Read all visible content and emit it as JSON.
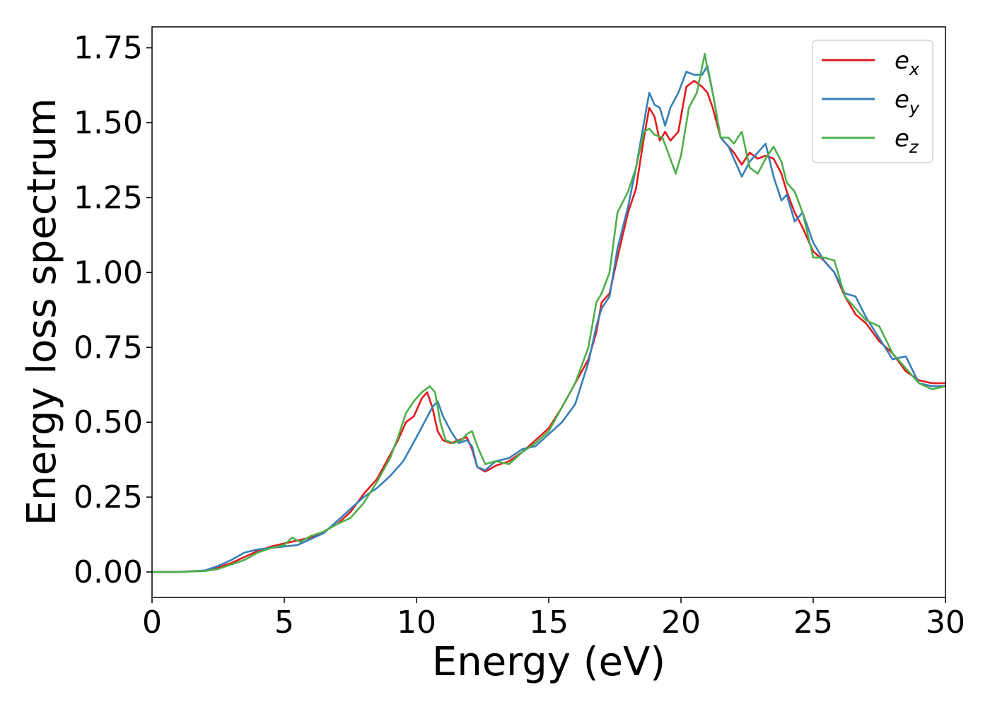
{
  "chart_data": {
    "type": "line",
    "xlabel": "Energy (eV)",
    "ylabel": "Energy loss spectrum",
    "xlim": [
      0,
      30
    ],
    "ylim": [
      -0.085,
      1.82
    ],
    "xticks": [
      0,
      5,
      10,
      15,
      20,
      25,
      30
    ],
    "xtick_labels": [
      "0",
      "5",
      "10",
      "15",
      "20",
      "25",
      "30"
    ],
    "yticks": [
      0,
      0.25,
      0.5,
      0.75,
      1.0,
      1.25,
      1.5,
      1.75
    ],
    "ytick_labels": [
      "0.00",
      "0.25",
      "0.50",
      "0.75",
      "1.00",
      "1.25",
      "1.50",
      "1.75"
    ],
    "grid": false,
    "legend_position": "top-right",
    "series": [
      {
        "name": "e_x",
        "legend_base": "e",
        "legend_sub": "x",
        "color": "#e41a1c",
        "x": [
          0,
          1,
          2,
          2.5,
          3,
          3.5,
          4,
          4.5,
          5,
          5.5,
          6,
          6.5,
          7,
          7.5,
          8,
          8.5,
          9,
          9.3,
          9.6,
          9.9,
          10.2,
          10.4,
          10.6,
          10.8,
          11,
          11.3,
          11.6,
          11.9,
          12.1,
          12.3,
          12.6,
          13,
          13.5,
          14,
          14.5,
          15,
          15.5,
          16,
          16.5,
          16.8,
          17,
          17.3,
          17.6,
          18,
          18.3,
          18.6,
          18.8,
          19,
          19.2,
          19.4,
          19.6,
          19.9,
          20.2,
          20.5,
          20.8,
          21,
          21.2,
          21.5,
          21.8,
          22,
          22.3,
          22.6,
          22.9,
          23.2,
          23.5,
          23.8,
          24,
          24.3,
          24.6,
          25,
          25.4,
          25.8,
          26.2,
          26.6,
          27,
          27.5,
          28,
          28.5,
          29,
          29.5,
          30
        ],
        "y": [
          0,
          0,
          0.005,
          0.015,
          0.03,
          0.05,
          0.07,
          0.085,
          0.095,
          0.105,
          0.115,
          0.135,
          0.16,
          0.2,
          0.26,
          0.31,
          0.39,
          0.44,
          0.5,
          0.52,
          0.58,
          0.6,
          0.55,
          0.47,
          0.44,
          0.43,
          0.44,
          0.45,
          0.41,
          0.35,
          0.335,
          0.355,
          0.37,
          0.4,
          0.44,
          0.48,
          0.55,
          0.63,
          0.71,
          0.8,
          0.9,
          0.93,
          1.05,
          1.2,
          1.28,
          1.45,
          1.55,
          1.52,
          1.44,
          1.47,
          1.44,
          1.47,
          1.62,
          1.64,
          1.62,
          1.6,
          1.55,
          1.45,
          1.42,
          1.4,
          1.36,
          1.4,
          1.38,
          1.39,
          1.38,
          1.33,
          1.27,
          1.2,
          1.15,
          1.07,
          1.04,
          1.0,
          0.92,
          0.86,
          0.83,
          0.77,
          0.73,
          0.67,
          0.64,
          0.63,
          0.63
        ]
      },
      {
        "name": "e_y",
        "legend_base": "e",
        "legend_sub": "y",
        "color": "#377eb8",
        "x": [
          0,
          1,
          2,
          2.5,
          3,
          3.5,
          4,
          4.5,
          5,
          5.5,
          6,
          6.5,
          7,
          7.5,
          8,
          8.5,
          9,
          9.5,
          10,
          10.3,
          10.6,
          10.8,
          11,
          11.3,
          11.6,
          11.9,
          12.1,
          12.3,
          12.6,
          13,
          13.5,
          14,
          14.5,
          15,
          15.5,
          16,
          16.5,
          16.8,
          17,
          17.3,
          17.6,
          18,
          18.3,
          18.6,
          18.8,
          19,
          19.2,
          19.4,
          19.6,
          19.9,
          20.2,
          20.5,
          20.8,
          21,
          21.2,
          21.5,
          21.8,
          22,
          22.3,
          22.6,
          22.9,
          23.2,
          23.5,
          23.8,
          24,
          24.3,
          24.6,
          25,
          25.4,
          25.8,
          26.2,
          26.6,
          27,
          27.5,
          28,
          28.5,
          29,
          29.5,
          30
        ],
        "y": [
          0,
          0,
          0.005,
          0.02,
          0.04,
          0.065,
          0.075,
          0.08,
          0.085,
          0.09,
          0.11,
          0.13,
          0.17,
          0.21,
          0.25,
          0.28,
          0.32,
          0.37,
          0.45,
          0.5,
          0.55,
          0.57,
          0.52,
          0.47,
          0.43,
          0.44,
          0.42,
          0.35,
          0.34,
          0.37,
          0.38,
          0.41,
          0.42,
          0.46,
          0.5,
          0.56,
          0.7,
          0.82,
          0.88,
          0.92,
          1.08,
          1.22,
          1.35,
          1.5,
          1.6,
          1.56,
          1.55,
          1.49,
          1.55,
          1.6,
          1.67,
          1.66,
          1.66,
          1.69,
          1.6,
          1.45,
          1.42,
          1.38,
          1.32,
          1.37,
          1.4,
          1.43,
          1.32,
          1.24,
          1.26,
          1.17,
          1.2,
          1.1,
          1.04,
          1.0,
          0.93,
          0.92,
          0.85,
          0.78,
          0.71,
          0.72,
          0.63,
          0.62,
          0.62
        ]
      },
      {
        "name": "e_z",
        "legend_base": "e",
        "legend_sub": "z",
        "color": "#4daf4a",
        "x": [
          0,
          1,
          2,
          2.5,
          3,
          3.5,
          4,
          4.5,
          5,
          5.3,
          5.6,
          6,
          6.5,
          7,
          7.5,
          8,
          8.5,
          9,
          9.3,
          9.6,
          9.9,
          10.2,
          10.5,
          10.7,
          10.9,
          11.1,
          11.4,
          11.7,
          11.9,
          12.1,
          12.3,
          12.6,
          13,
          13.5,
          14,
          14.5,
          15,
          15.5,
          16,
          16.5,
          16.8,
          17,
          17.3,
          17.6,
          18,
          18.3,
          18.6,
          18.8,
          19,
          19.3,
          19.6,
          19.8,
          20,
          20.3,
          20.6,
          20.9,
          21,
          21.2,
          21.5,
          21.8,
          22,
          22.3,
          22.6,
          22.9,
          23.2,
          23.5,
          23.8,
          24,
          24.3,
          24.6,
          25,
          25.4,
          25.8,
          26.2,
          26.6,
          27,
          27.5,
          28,
          28.5,
          29,
          29.5,
          30
        ],
        "y": [
          0,
          0,
          0.003,
          0.01,
          0.025,
          0.04,
          0.065,
          0.08,
          0.09,
          0.115,
          0.1,
          0.12,
          0.135,
          0.16,
          0.18,
          0.23,
          0.3,
          0.38,
          0.45,
          0.53,
          0.57,
          0.6,
          0.62,
          0.6,
          0.5,
          0.44,
          0.43,
          0.44,
          0.46,
          0.47,
          0.42,
          0.36,
          0.37,
          0.36,
          0.4,
          0.43,
          0.47,
          0.55,
          0.63,
          0.75,
          0.9,
          0.93,
          1.0,
          1.2,
          1.27,
          1.35,
          1.47,
          1.48,
          1.46,
          1.45,
          1.38,
          1.33,
          1.39,
          1.55,
          1.6,
          1.73,
          1.68,
          1.6,
          1.45,
          1.45,
          1.43,
          1.47,
          1.35,
          1.33,
          1.38,
          1.42,
          1.37,
          1.3,
          1.27,
          1.2,
          1.05,
          1.05,
          1.04,
          0.92,
          0.88,
          0.84,
          0.82,
          0.73,
          0.68,
          0.63,
          0.61,
          0.62
        ]
      }
    ]
  }
}
